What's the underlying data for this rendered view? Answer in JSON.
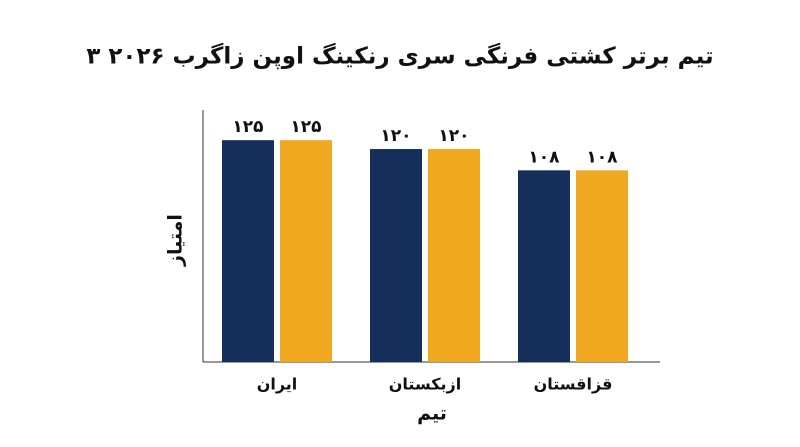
{
  "chart_data": {
    "type": "bar",
    "title": "۳ تیم برتر کشتی فرنگی سری رنکینگ اوپن زاگرب ۲۰۲۶",
    "x_label": "تیم",
    "y_label": "امتیاز",
    "categories": [
      "ایران",
      "ازبکستان",
      "قزاقستان"
    ],
    "series": [
      {
        "color": "#152e5a",
        "values": [
          125,
          120,
          108
        ],
        "value_labels": [
          "۱۲۵",
          "۱۲۰",
          "۱۰۸"
        ]
      },
      {
        "color": "#f0a820",
        "values": [
          125,
          120,
          108
        ],
        "value_labels": [
          "۱۲۵",
          "۱۲۰",
          "۱۰۸"
        ]
      }
    ],
    "ylim": [
      0,
      142
    ]
  }
}
